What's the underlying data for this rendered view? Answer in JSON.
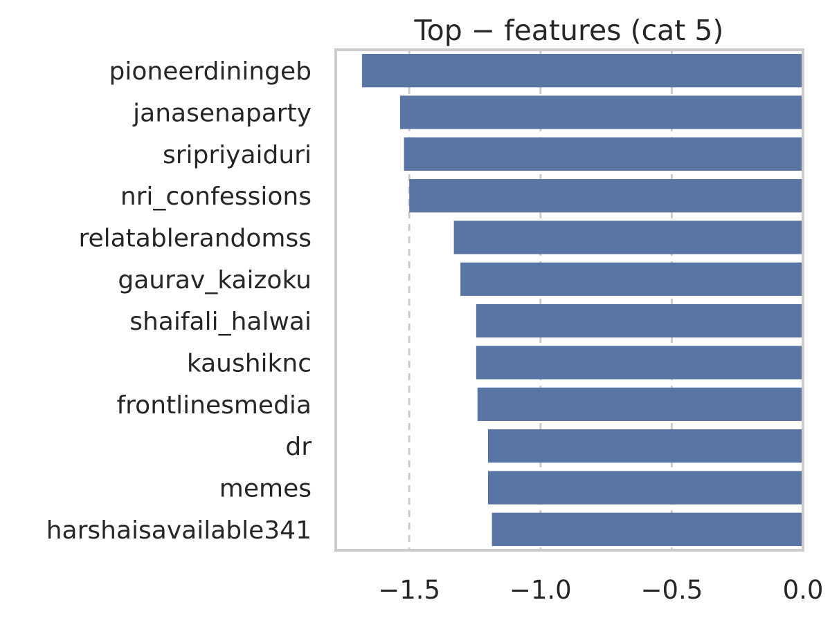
{
  "chart_data": {
    "type": "bar",
    "orientation": "horizontal",
    "title": "Top − features (cat 5)",
    "xlabel": "",
    "ylabel": "",
    "categories": [
      "pioneerdiningeb",
      "janasenaparty",
      "sripriyaiduri",
      "nri_confessions",
      "relatablerandomss",
      "gaurav_kaizoku",
      "shaifali_halwai",
      "kaushiknc",
      "frontlinesmedia",
      "dr",
      "memes",
      "harshaisavailable341"
    ],
    "values": [
      -1.68,
      -1.535,
      -1.52,
      -1.5,
      -1.33,
      -1.305,
      -1.245,
      -1.245,
      -1.24,
      -1.2,
      -1.2,
      -1.185
    ],
    "xlim": [
      -1.78,
      0.0
    ],
    "xticks": [
      -1.5,
      -1.0,
      -0.5,
      0.0
    ],
    "xtick_labels": [
      "−1.5",
      "−1.0",
      "−0.5",
      "0.0"
    ],
    "grid": "vertical dashed",
    "bar_color": "#5975a4"
  }
}
